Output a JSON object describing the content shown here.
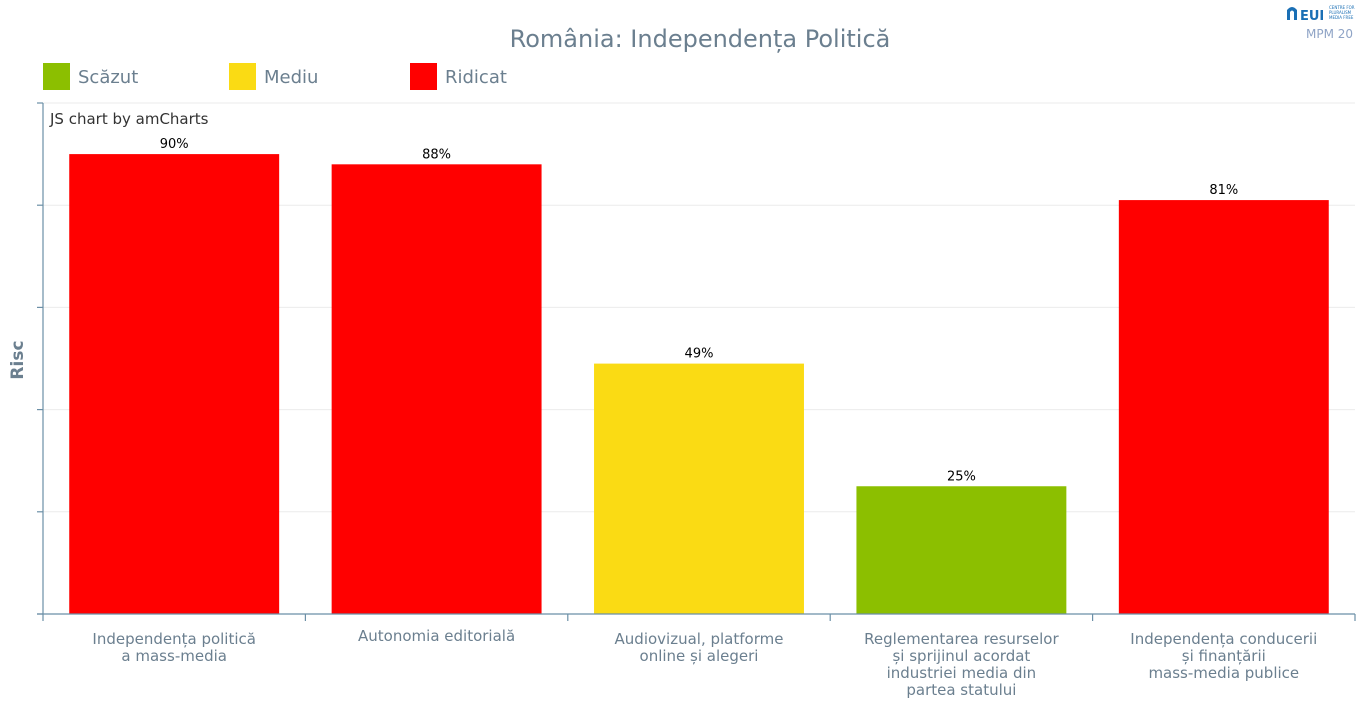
{
  "colors": {
    "low": "#8cbf00",
    "medium": "#fadb14",
    "high": "#ff0000",
    "text": "#6b7f8f",
    "axis": "#6b8fa6",
    "logo": "#1a6fb5"
  },
  "logo": {
    "brand": "EUI",
    "tagline_lines": [
      "CENTRE FOR",
      "PLURALISM",
      "MEDIA FREE"
    ],
    "edition": "MPM 20"
  },
  "credit": "JS chart by amCharts",
  "legend": [
    {
      "label": "Scăzut",
      "level": "low"
    },
    {
      "label": "Mediu",
      "level": "medium"
    },
    {
      "label": "Ridicat",
      "level": "high"
    }
  ],
  "chart_data": {
    "type": "bar",
    "title": "România: Independența Politică",
    "ylabel": "Risc",
    "xlabel": "",
    "ylim": [
      0,
      100
    ],
    "grid": true,
    "legend_position": "top-left",
    "categories": [
      [
        "Independența politică",
        "a mass-media"
      ],
      [
        "Autonomia editorială"
      ],
      [
        "Audiovizual, platforme",
        "online și alegeri"
      ],
      [
        "Reglementarea resurselor",
        "și sprijinul acordat",
        "industriei media din",
        "partea statului"
      ],
      [
        "Independența conducerii",
        "și finanțării",
        "mass-media publice"
      ]
    ],
    "values": [
      90,
      88,
      49,
      25,
      81
    ],
    "value_labels": [
      "90%",
      "88%",
      "49%",
      "25%",
      "81%"
    ],
    "levels": [
      "high",
      "high",
      "medium",
      "low",
      "high"
    ]
  }
}
